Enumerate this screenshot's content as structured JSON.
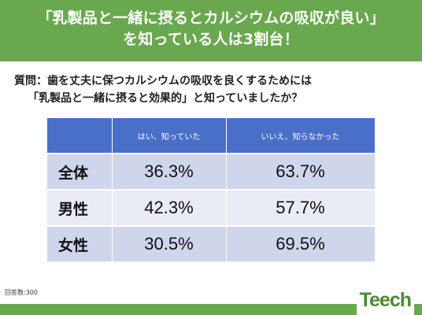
{
  "banner": {
    "line1": "「乳製品と一緒に摂るとカルシウムの吸収が良い」",
    "line2": "を知っている人は3割台！"
  },
  "question": {
    "line1": "質問：歯を丈夫に保つカルシウムの吸収を良くするためには",
    "line2": "「乳製品と一緒に摂ると効果的」と知っていましたか？"
  },
  "chart_data": {
    "type": "table",
    "columns": [
      "",
      "はい、知っていた",
      "いいえ、知らなかった"
    ],
    "rows": [
      {
        "label": "全体",
        "values": [
          "36.3%",
          "63.7%"
        ]
      },
      {
        "label": "男性",
        "values": [
          "42.3%",
          "57.7%"
        ]
      },
      {
        "label": "女性",
        "values": [
          "30.5%",
          "69.5%"
        ]
      }
    ]
  },
  "footnote": "回答数:300",
  "logo": "Teech",
  "colors": {
    "banner": "#6aa84f",
    "header": "#4a6fc8",
    "row_dark": "#cfd5ea",
    "row_light": "#e9ebf5"
  }
}
